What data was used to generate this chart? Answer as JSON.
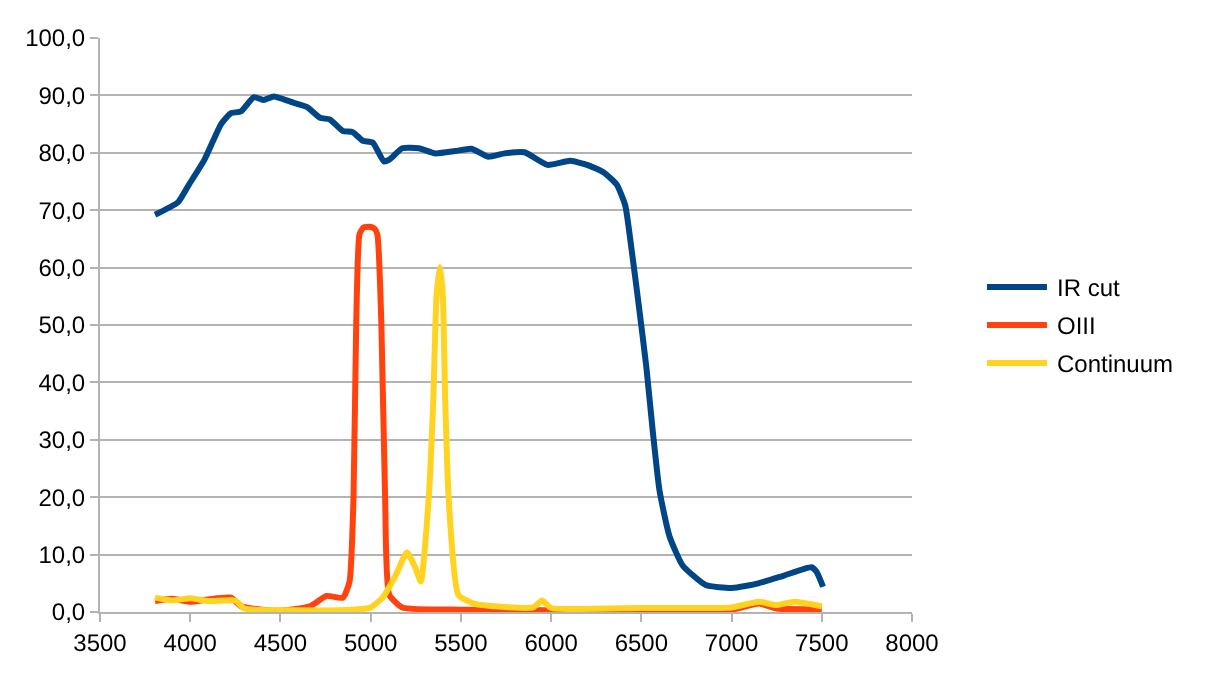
{
  "chart_data": {
    "type": "line",
    "series": [
      {
        "name": "IR cut",
        "color": "#004586",
        "x": [
          3805,
          3933,
          3988,
          4079,
          4171,
          4226,
          4281,
          4353,
          4408,
          4463,
          4555,
          4646,
          4719,
          4774,
          4846,
          4901,
          4956,
          5011,
          5073,
          5103,
          5175,
          5267,
          5358,
          5468,
          5559,
          5651,
          5742,
          5852,
          5980,
          6107,
          6199,
          6290,
          6363,
          6411,
          6447,
          6484,
          6528,
          6564,
          6601,
          6656,
          6729,
          6857,
          7003,
          7149,
          7295,
          7442,
          7471,
          7507
        ],
        "values": [
          69.2,
          71.4,
          74.2,
          78.8,
          85.0,
          86.9,
          87.2,
          89.7,
          89.2,
          89.8,
          88.9,
          88.0,
          86.1,
          85.8,
          83.8,
          83.6,
          82.1,
          81.8,
          78.5,
          78.8,
          80.8,
          80.8,
          79.9,
          80.3,
          80.7,
          79.3,
          79.9,
          80.1,
          77.9,
          78.6,
          77.9,
          76.6,
          74.5,
          70.8,
          62.9,
          53.9,
          42.6,
          31.3,
          21.1,
          13.2,
          8.1,
          4.7,
          4.2,
          5.0,
          6.4,
          7.8,
          7.0,
          4.4
        ]
      },
      {
        "name": "OIII",
        "color": "#ff420e",
        "x": [
          3805,
          3900,
          4000,
          4100,
          4226,
          4281,
          4481,
          4664,
          4755,
          4846,
          4883,
          4905,
          4920,
          4938,
          4960,
          4993,
          5020,
          5037,
          5059,
          5080,
          5103,
          5175,
          5500,
          6000,
          6500,
          7000,
          7150,
          7250,
          7500
        ],
        "values": [
          1.9,
          2.3,
          1.8,
          2.2,
          2.5,
          1.0,
          0.2,
          1.0,
          2.8,
          2.5,
          5.3,
          20,
          50.5,
          65.8,
          67.0,
          67.1,
          66.8,
          65.8,
          50.5,
          20,
          3.0,
          0.8,
          0.4,
          0.3,
          0.3,
          0.4,
          1.5,
          0.6,
          0.5
        ]
      },
      {
        "name": "Continuum",
        "color": "#ffd320",
        "x": [
          3805,
          3900,
          4000,
          4100,
          4250,
          4300,
          4600,
          4900,
          5000,
          5066,
          5139,
          5201,
          5249,
          5278,
          5322,
          5347,
          5365,
          5384,
          5400,
          5413,
          5432,
          5486,
          5577,
          5900,
          5950,
          6000,
          6500,
          7000,
          7150,
          7250,
          7350,
          7500
        ],
        "values": [
          2.5,
          2.0,
          2.4,
          1.9,
          2.0,
          0.6,
          0.3,
          0.4,
          0.8,
          2.5,
          6.4,
          10.4,
          7.6,
          5.3,
          20,
          37,
          55,
          60.1,
          55,
          37,
          20,
          3.0,
          1.4,
          0.8,
          2.0,
          0.7,
          0.7,
          0.8,
          1.8,
          1.2,
          1.8,
          1.0
        ]
      }
    ],
    "xlim": [
      3500,
      8000
    ],
    "xticks": [
      3500,
      4000,
      4500,
      5000,
      5500,
      6000,
      6500,
      7000,
      7500,
      8000
    ],
    "ylim": [
      0,
      100
    ],
    "yticks": [
      {
        "value": 0,
        "label": "0,0"
      },
      {
        "value": 10,
        "label": "10,0"
      },
      {
        "value": 20,
        "label": "20,0"
      },
      {
        "value": 30,
        "label": "30,0"
      },
      {
        "value": 40,
        "label": "40,0"
      },
      {
        "value": 50,
        "label": "50,0"
      },
      {
        "value": 60,
        "label": "60,0"
      },
      {
        "value": 70,
        "label": "70,0"
      },
      {
        "value": 80,
        "label": "80,0"
      },
      {
        "value": 90,
        "label": "90,0"
      },
      {
        "value": 100,
        "label": "100,0"
      }
    ],
    "grid": "y",
    "legend": "right",
    "marker": "none",
    "line_style": "solid"
  }
}
